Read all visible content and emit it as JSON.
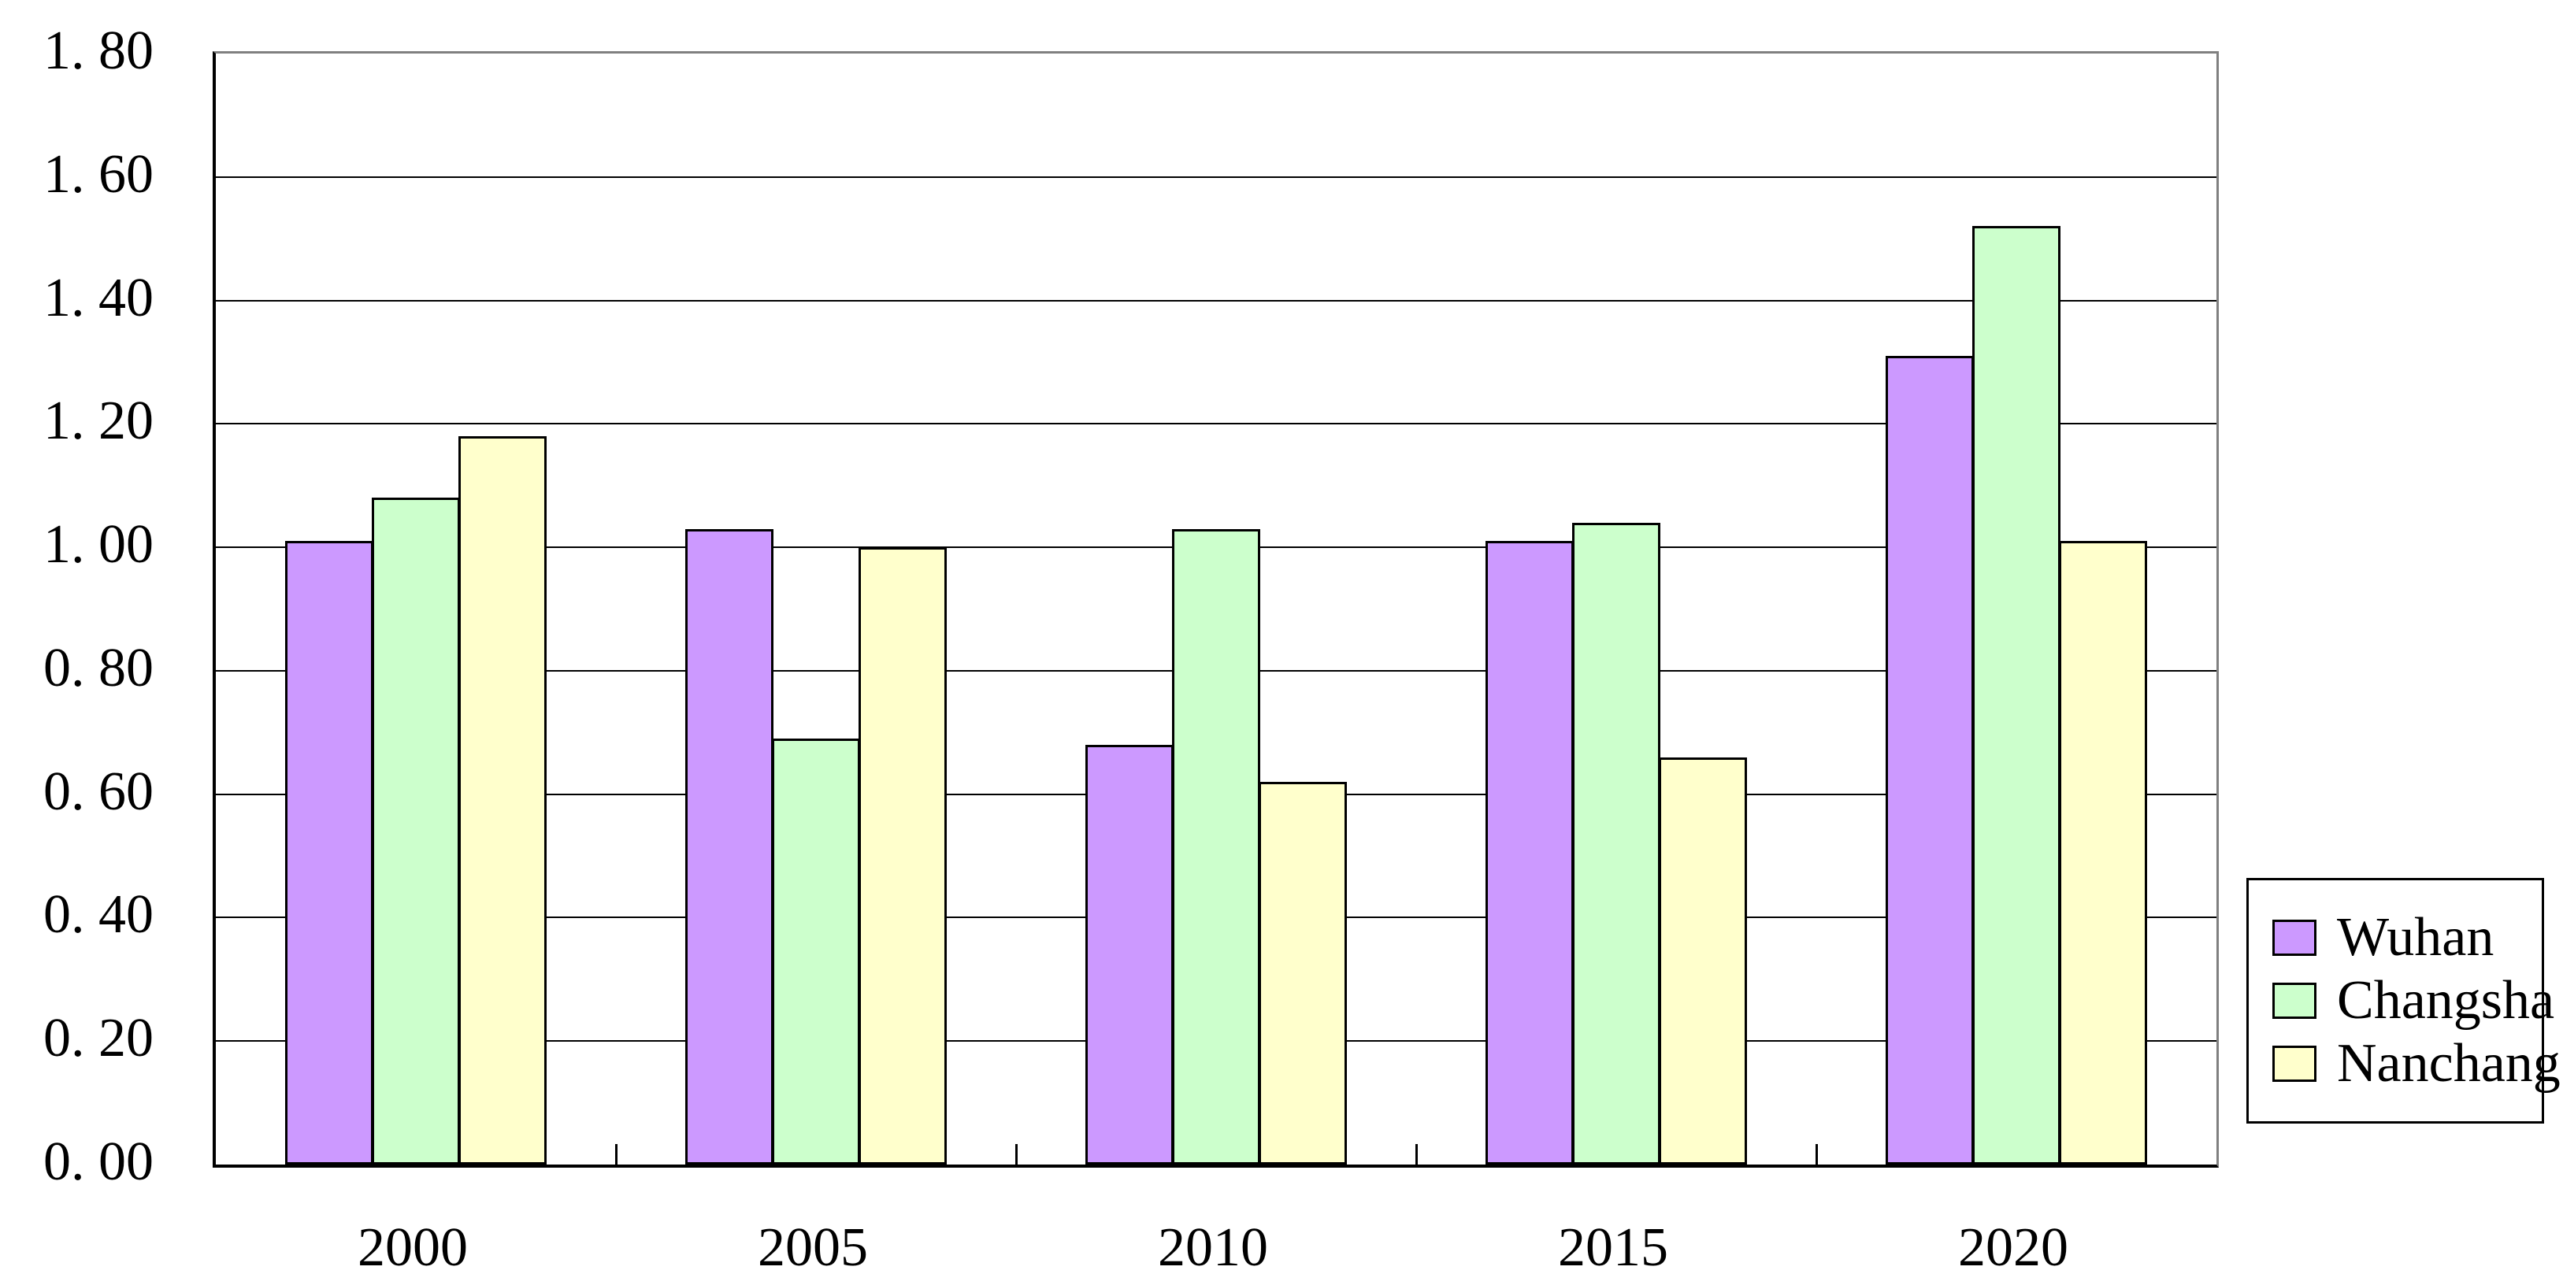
{
  "chart_data": {
    "type": "bar",
    "title": "",
    "xlabel": "",
    "ylabel": "",
    "categories": [
      "2000",
      "2005",
      "2010",
      "2015",
      "2020"
    ],
    "series": [
      {
        "name": "Wuhan",
        "color": "#CC99FF",
        "values": [
          1.01,
          1.03,
          0.68,
          1.01,
          1.31
        ]
      },
      {
        "name": "Changsha",
        "color": "#CCFFCC",
        "values": [
          1.08,
          0.69,
          1.03,
          1.04,
          1.52
        ]
      },
      {
        "name": "Nanchang",
        "color": "#FFFFCC",
        "values": [
          1.18,
          1.0,
          0.62,
          0.66,
          1.01
        ]
      }
    ],
    "ylim": [
      0,
      1.8
    ],
    "ytick_step": 0.2,
    "ytick_labels": [
      "0. 00",
      "0. 20",
      "0. 40",
      "0. 60",
      "0. 80",
      "1. 00",
      "1. 20",
      "1. 40",
      "1. 60",
      "1. 80"
    ],
    "grid": true,
    "legend_position": "right-bottom",
    "legend": [
      "Wuhan",
      "Changsha",
      "Nanchang"
    ]
  },
  "colors": {
    "background": "#FFFFFF",
    "plot_border": "#808080",
    "gridline": "#000000",
    "axis_line": "#000000",
    "bar_border": "#000000",
    "text": "#000000"
  }
}
